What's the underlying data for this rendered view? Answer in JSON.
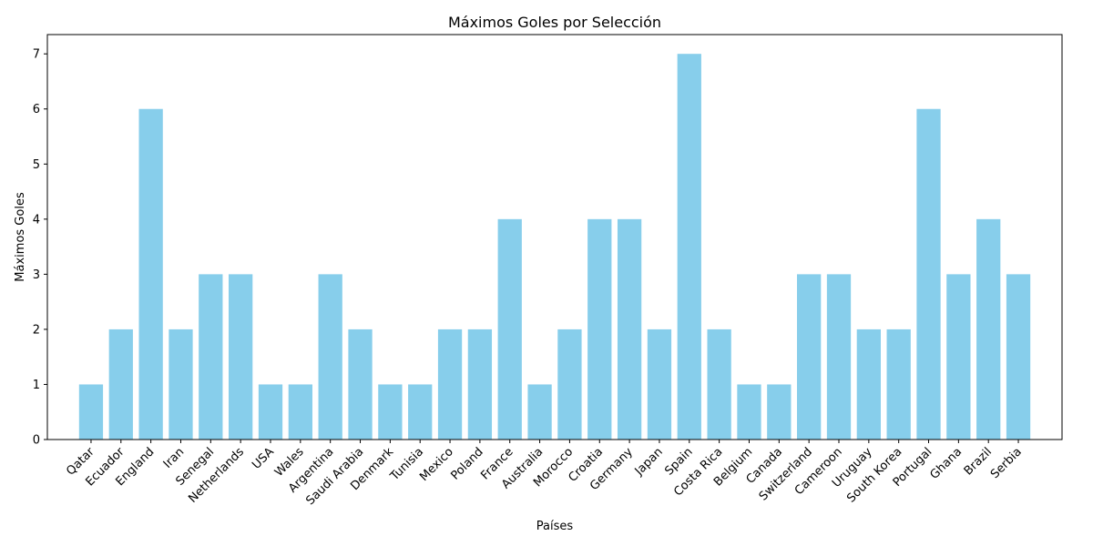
{
  "chart_data": {
    "type": "bar",
    "title": "Máximos Goles por Selección",
    "xlabel": "Países",
    "ylabel": "Máximos Goles",
    "categories": [
      "Qatar",
      "Ecuador",
      "England",
      "Iran",
      "Senegal",
      "Netherlands",
      "USA",
      "Wales",
      "Argentina",
      "Saudi Arabia",
      "Denmark",
      "Tunisia",
      "Mexico",
      "Poland",
      "France",
      "Australia",
      "Morocco",
      "Croatia",
      "Germany",
      "Japan",
      "Spain",
      "Costa Rica",
      "Belgium",
      "Canada",
      "Switzerland",
      "Cameroon",
      "Uruguay",
      "South Korea",
      "Portugal",
      "Ghana",
      "Brazil",
      "Serbia"
    ],
    "values": [
      1,
      2,
      6,
      2,
      3,
      3,
      1,
      1,
      3,
      2,
      1,
      1,
      2,
      2,
      4,
      1,
      2,
      4,
      4,
      2,
      7,
      2,
      1,
      1,
      3,
      3,
      2,
      2,
      6,
      3,
      4,
      3
    ],
    "ylim": [
      0,
      7.35
    ],
    "yticks": [
      0,
      1,
      2,
      3,
      4,
      5,
      6,
      7
    ],
    "bar_color": "#87ceeb",
    "grid": false,
    "xtick_rotation": 45
  }
}
